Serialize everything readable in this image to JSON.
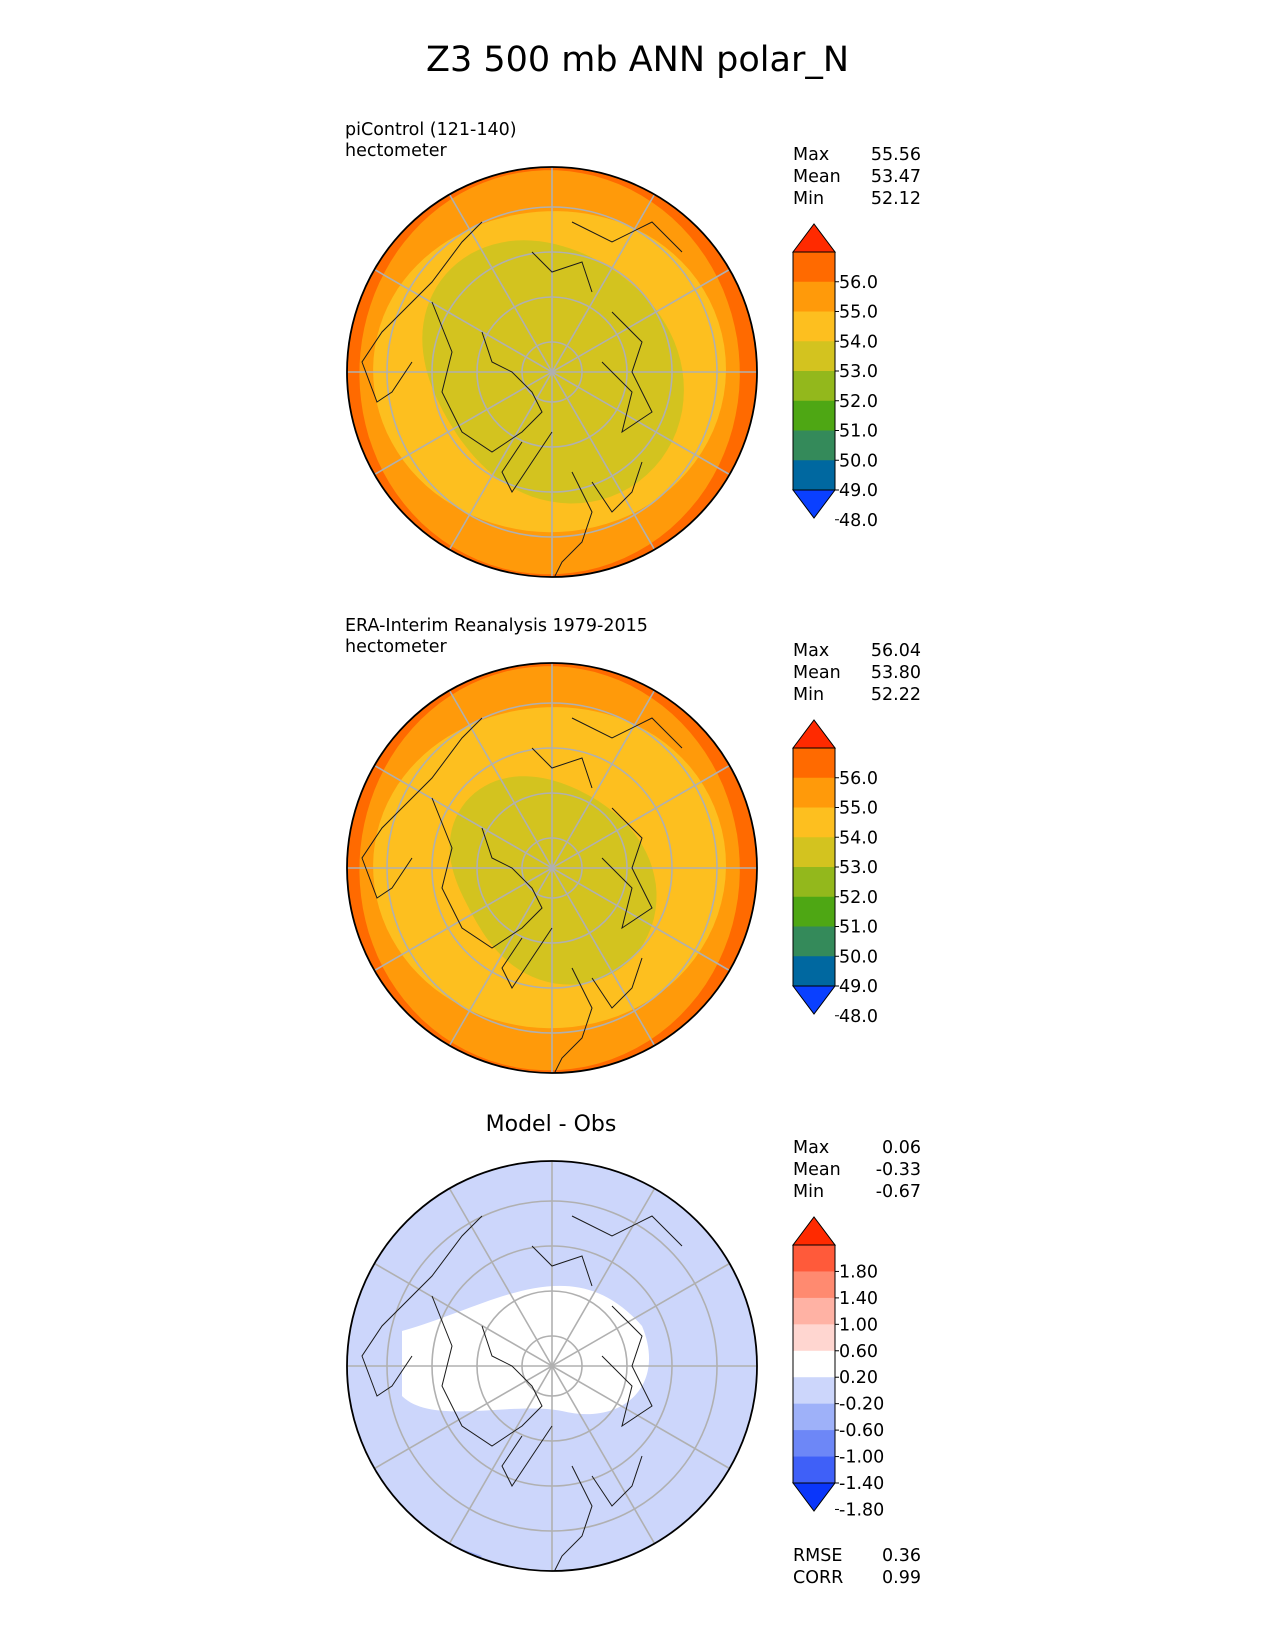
{
  "title": "Z3 500 mb ANN polar_N",
  "panels": [
    {
      "id": "model",
      "label_lines": [
        "piControl (121-140)",
        "hectometer"
      ],
      "center_title": "",
      "stats": [
        {
          "name": "Max",
          "value": "55.56"
        },
        {
          "name": "Mean",
          "value": "53.47"
        },
        {
          "name": "Min",
          "value": "52.12"
        }
      ],
      "extra_stats": [],
      "colorbar": {
        "ticks": [
          "56.0",
          "55.0",
          "54.0",
          "53.0",
          "52.0",
          "51.0",
          "50.0",
          "49.0",
          "48.0"
        ],
        "colors": [
          "#ff2a00",
          "#ff6a00",
          "#ff9a0a",
          "#fdbf1f",
          "#d3c31f",
          "#93b81c",
          "#4ea714",
          "#348a5a",
          "#0068a0",
          "#0a40ff"
        ]
      }
    },
    {
      "id": "obs",
      "label_lines": [
        "ERA-Interim Reanalysis 1979-2015",
        "hectometer"
      ],
      "center_title": "",
      "stats": [
        {
          "name": "Max",
          "value": "56.04"
        },
        {
          "name": "Mean",
          "value": "53.80"
        },
        {
          "name": "Min",
          "value": "52.22"
        }
      ],
      "extra_stats": [],
      "colorbar": {
        "ticks": [
          "56.0",
          "55.0",
          "54.0",
          "53.0",
          "52.0",
          "51.0",
          "50.0",
          "49.0",
          "48.0"
        ],
        "colors": [
          "#ff2a00",
          "#ff6a00",
          "#ff9a0a",
          "#fdbf1f",
          "#d3c31f",
          "#93b81c",
          "#4ea714",
          "#348a5a",
          "#0068a0",
          "#0a40ff"
        ]
      }
    },
    {
      "id": "diff",
      "label_lines": [],
      "center_title": "Model - Obs",
      "stats": [
        {
          "name": "Max",
          "value": "0.06"
        },
        {
          "name": "Mean",
          "value": "-0.33"
        },
        {
          "name": "Min",
          "value": "-0.67"
        }
      ],
      "extra_stats": [
        {
          "name": "RMSE",
          "value": "0.36"
        },
        {
          "name": "CORR",
          "value": "0.99"
        }
      ],
      "colorbar": {
        "ticks": [
          "1.80",
          "1.40",
          "1.00",
          "0.60",
          "0.20",
          "-0.20",
          "-0.60",
          "-1.00",
          "-1.40",
          "-1.80"
        ],
        "colors": [
          "#ff2a00",
          "#ff5a3a",
          "#ff8a70",
          "#ffb2a4",
          "#ffd6d0",
          "#ffffff",
          "#ccd6fb",
          "#9eb1f9",
          "#6d87f7",
          "#3f60f8",
          "#0a36fa"
        ]
      }
    }
  ]
}
